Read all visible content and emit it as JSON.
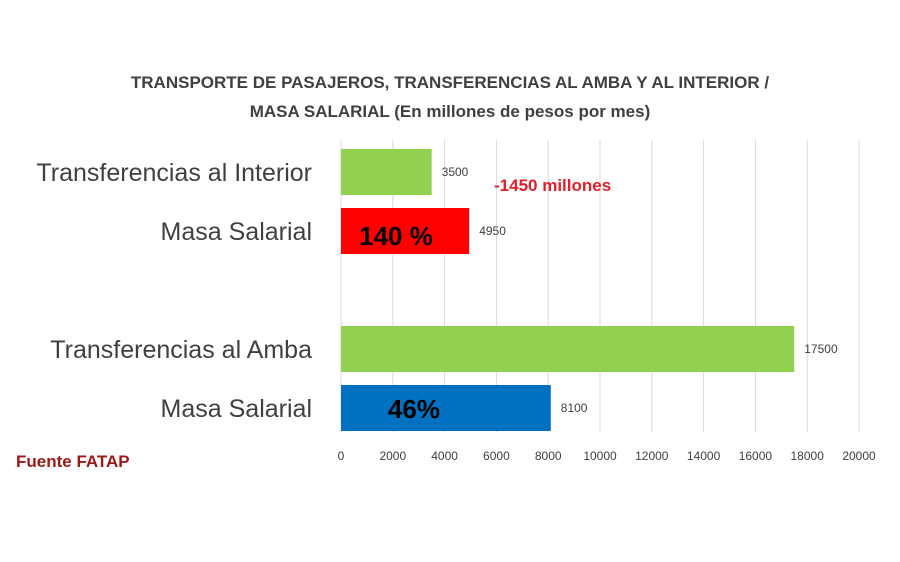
{
  "chart_data": {
    "type": "bar",
    "orientation": "horizontal",
    "title": [
      "TRANSPORTE DE PASAJEROS, TRANSFERENCIAS AL AMBA Y AL INTERIOR /",
      "MASA SALARIAL (En millones de pesos por mes)"
    ],
    "categories": [
      "Transferencias al Interior",
      "Masa Salarial",
      "Transferencias al Amba",
      "Masa Salarial"
    ],
    "values": [
      3500,
      4950,
      17500,
      8100
    ],
    "bar_colors": [
      "#92d050",
      "#ff0000",
      "#92d050",
      "#0070c0"
    ],
    "xlim": [
      0,
      20000
    ],
    "xticks": [
      0,
      2000,
      4000,
      6000,
      8000,
      10000,
      12000,
      14000,
      16000,
      18000,
      20000
    ],
    "grid": true,
    "legend": "none",
    "annotations": [
      {
        "text": "140 %",
        "bar": 1,
        "color": "#000000"
      },
      {
        "text": "46%",
        "bar": 3,
        "color": "#000000"
      },
      {
        "text": "-1450 millones",
        "near_bar": 0,
        "color": "#e0202a"
      }
    ],
    "source": {
      "text": "Fuente FATAP",
      "color": "#9a1a1a"
    }
  }
}
